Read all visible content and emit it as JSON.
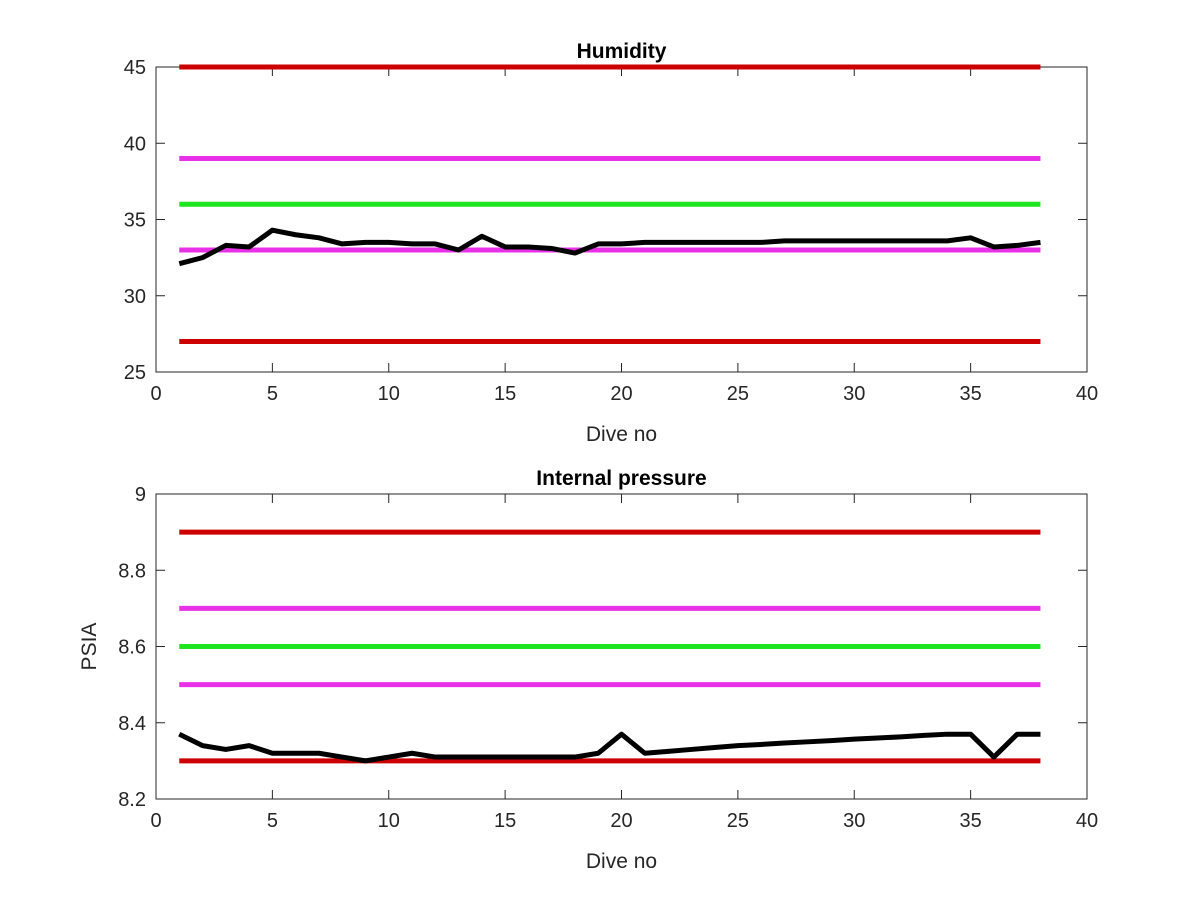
{
  "colors": {
    "limit_outer": "#cc0000",
    "limit_inner": "#e830e8",
    "nominal": "#1ee61e",
    "series": "#000000"
  },
  "chart_data": [
    {
      "type": "line",
      "title": "Humidity",
      "xlabel": "Dive no",
      "ylabel": "",
      "xlim": [
        0,
        40
      ],
      "ylim": [
        25,
        45
      ],
      "xticks": [
        0,
        5,
        10,
        15,
        20,
        25,
        30,
        35,
        40
      ],
      "yticks": [
        25,
        30,
        35,
        40,
        45
      ],
      "grid": false,
      "reference_lines": [
        {
          "y": 45,
          "x": [
            1,
            38
          ],
          "color_key": "limit_outer"
        },
        {
          "y": 39,
          "x": [
            1,
            38
          ],
          "color_key": "limit_inner"
        },
        {
          "y": 36,
          "x": [
            1,
            38
          ],
          "color_key": "nominal"
        },
        {
          "y": 33,
          "x": [
            1,
            38
          ],
          "color_key": "limit_inner"
        },
        {
          "y": 27,
          "x": [
            1,
            38
          ],
          "color_key": "limit_outer"
        }
      ],
      "series": [
        {
          "color_key": "series",
          "x": [
            1,
            2,
            3,
            4,
            5,
            6,
            7,
            8,
            9,
            10,
            11,
            12,
            13,
            14,
            15,
            16,
            17,
            18,
            19,
            20,
            21,
            22,
            23,
            24,
            25,
            26,
            27,
            28,
            29,
            30,
            31,
            32,
            33,
            34,
            35,
            36,
            37,
            38
          ],
          "values": [
            32.1,
            32.5,
            33.3,
            33.2,
            34.3,
            34.0,
            33.8,
            33.4,
            33.5,
            33.5,
            33.4,
            33.4,
            33.0,
            33.9,
            33.2,
            33.2,
            33.1,
            32.8,
            33.4,
            33.4,
            33.5,
            33.5,
            33.5,
            33.5,
            33.5,
            33.5,
            33.6,
            33.6,
            33.6,
            33.6,
            33.6,
            33.6,
            33.6,
            33.6,
            33.8,
            33.2,
            33.3,
            33.5
          ]
        }
      ]
    },
    {
      "type": "line",
      "title": "Internal pressure",
      "xlabel": "Dive no",
      "ylabel": "PSIA",
      "xlim": [
        0,
        40
      ],
      "ylim": [
        8.2,
        9.0
      ],
      "xticks": [
        0,
        5,
        10,
        15,
        20,
        25,
        30,
        35,
        40
      ],
      "yticks": [
        8.2,
        8.4,
        8.6,
        8.8,
        9.0
      ],
      "ytick_labels": [
        "8.2",
        "8.4",
        "8.6",
        "8.8",
        "9"
      ],
      "grid": false,
      "reference_lines": [
        {
          "y": 8.9,
          "x": [
            1,
            38
          ],
          "color_key": "limit_outer"
        },
        {
          "y": 8.7,
          "x": [
            1,
            38
          ],
          "color_key": "limit_inner"
        },
        {
          "y": 8.6,
          "x": [
            1,
            38
          ],
          "color_key": "nominal"
        },
        {
          "y": 8.5,
          "x": [
            1,
            38
          ],
          "color_key": "limit_inner"
        },
        {
          "y": 8.3,
          "x": [
            1,
            38
          ],
          "color_key": "limit_outer"
        }
      ],
      "series": [
        {
          "color_key": "series",
          "x": [
            1,
            2,
            3,
            4,
            5,
            6,
            7,
            8,
            9,
            10,
            11,
            12,
            13,
            14,
            15,
            16,
            17,
            18,
            19,
            20,
            21,
            22,
            23,
            24,
            25,
            26,
            27,
            28,
            29,
            30,
            31,
            32,
            33,
            34,
            35,
            36,
            37,
            38
          ],
          "values": [
            8.37,
            8.34,
            8.33,
            8.34,
            8.32,
            8.32,
            8.32,
            8.31,
            8.3,
            8.31,
            8.32,
            8.31,
            8.31,
            8.31,
            8.31,
            8.31,
            8.31,
            8.31,
            8.32,
            8.37,
            8.32,
            8.325,
            8.33,
            8.335,
            8.34,
            8.343,
            8.347,
            8.35,
            8.353,
            8.357,
            8.36,
            8.363,
            8.367,
            8.37,
            8.37,
            8.31,
            8.37,
            8.37
          ]
        }
      ]
    }
  ]
}
